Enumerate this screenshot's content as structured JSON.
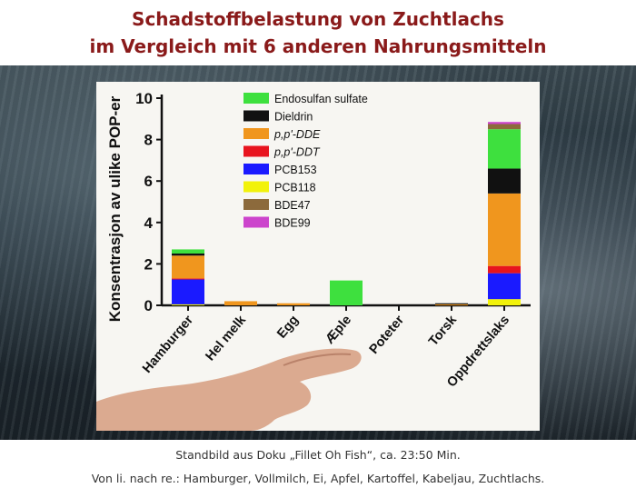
{
  "header": {
    "title_line1": "Schadstoffbelastung von Zuchtlachs",
    "title_line2": "im Vergleich mit 6 anderen Nahrungsmitteln"
  },
  "caption": {
    "line1": "Standbild aus Doku „Fillet Oh Fish“, ca. 23:50 Min.",
    "line2": "Von li. nach re.: Hamburger, Vollmilch, Ei, Apfel, Kartoffel, Kabeljau, Zuchtlachs."
  },
  "chart_data": {
    "type": "bar",
    "stacked": true,
    "ylabel": "Konsentrasjon av ulike POP-er",
    "ylim": [
      0,
      10
    ],
    "yticks": [
      0,
      2,
      4,
      6,
      8,
      10
    ],
    "legend_position": "top-left",
    "categories": [
      "Hamburger",
      "Hel melk",
      "Egg",
      "Æple",
      "Poteter",
      "Torsk",
      "Oppdrettslaks"
    ],
    "series": [
      {
        "name": "PCB118",
        "color": "#f2f20a",
        "values": [
          0.05,
          0.0,
          0.0,
          0.0,
          0.0,
          0.0,
          0.3
        ]
      },
      {
        "name": "PCB153",
        "color": "#1a1aff",
        "values": [
          1.2,
          0.0,
          0.0,
          0.0,
          0.0,
          0.0,
          1.25
        ]
      },
      {
        "name": "p,p'-DDT",
        "color": "#e8141e",
        "values": [
          0.05,
          0.0,
          0.0,
          0.0,
          0.0,
          0.0,
          0.35
        ]
      },
      {
        "name": "p,p'-DDE",
        "color": "#f0961e",
        "values": [
          1.1,
          0.2,
          0.1,
          0.0,
          0.0,
          0.05,
          3.5
        ]
      },
      {
        "name": "Dieldrin",
        "color": "#111111",
        "values": [
          0.1,
          0.0,
          0.0,
          0.0,
          0.0,
          0.05,
          1.2
        ]
      },
      {
        "name": "Endosulfan sulfate",
        "color": "#3ee03e",
        "values": [
          0.2,
          0.0,
          0.0,
          1.2,
          0.0,
          0.0,
          1.9
        ]
      },
      {
        "name": "BDE47",
        "color": "#8c6a3c",
        "values": [
          0.0,
          0.0,
          0.0,
          0.0,
          0.0,
          0.0,
          0.25
        ]
      },
      {
        "name": "BDE99",
        "color": "#cc44cc",
        "values": [
          0.0,
          0.0,
          0.0,
          0.0,
          0.0,
          0.0,
          0.1
        ]
      }
    ],
    "legend_order": [
      "Endosulfan sulfate",
      "Dieldrin",
      "p,p'-DDE",
      "p,p'-DDT",
      "PCB153",
      "PCB118",
      "BDE47",
      "BDE99"
    ]
  }
}
